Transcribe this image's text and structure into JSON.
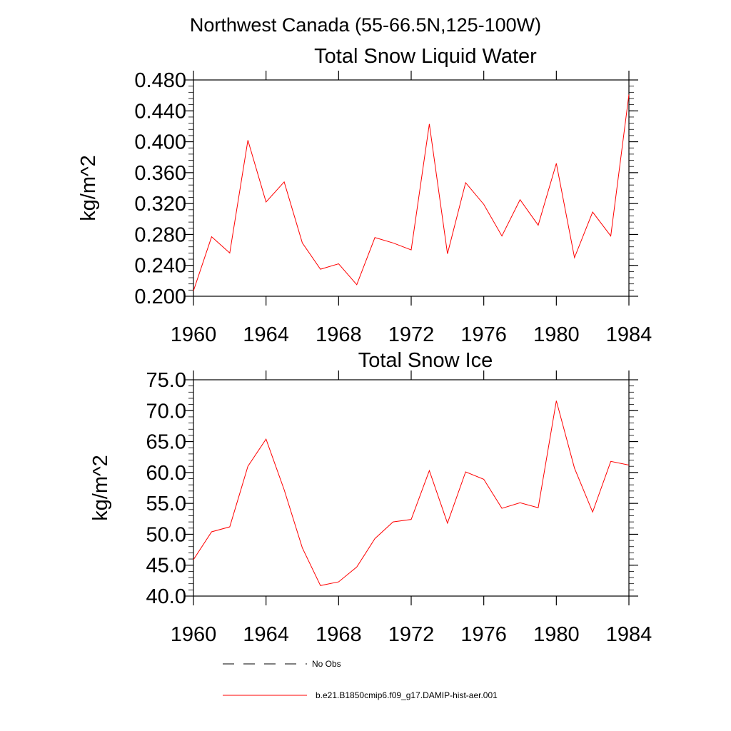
{
  "suptitle": "Northwest Canada (55-66.5N,125-100W)",
  "legend": {
    "items": [
      {
        "label": "No Obs",
        "color": "#000000",
        "dash": "dashed"
      },
      {
        "label": "b.e21.B1850cmip6.f09_g17.DAMIP-hist-aer.001",
        "color": "#ff0000",
        "dash": "solid"
      }
    ]
  },
  "chart_data": [
    {
      "type": "line",
      "title": "Total Snow Liquid Water",
      "ylabel": "kg/m^2",
      "xlabel": "",
      "xlim": [
        1960,
        1984
      ],
      "ylim": [
        0.2,
        0.48
      ],
      "xticks": [
        1960,
        1964,
        1968,
        1972,
        1976,
        1980,
        1984
      ],
      "yticks": [
        "0.200",
        "0.240",
        "0.280",
        "0.320",
        "0.360",
        "0.400",
        "0.440",
        "0.480"
      ],
      "x": [
        1960,
        1961,
        1962,
        1963,
        1964,
        1965,
        1966,
        1967,
        1968,
        1969,
        1970,
        1971,
        1972,
        1973,
        1974,
        1975,
        1976,
        1977,
        1978,
        1979,
        1980,
        1981,
        1982,
        1983,
        1984
      ],
      "series": [
        {
          "name": "b.e21.B1850cmip6.f09_g17.DAMIP-hist-aer.001",
          "color": "#ff0000",
          "values": [
            0.207,
            0.277,
            0.256,
            0.402,
            0.322,
            0.348,
            0.269,
            0.235,
            0.242,
            0.215,
            0.276,
            0.269,
            0.26,
            0.423,
            0.255,
            0.347,
            0.319,
            0.278,
            0.325,
            0.292,
            0.372,
            0.25,
            0.309,
            0.278,
            0.461
          ]
        }
      ]
    },
    {
      "type": "line",
      "title": "Total Snow Ice",
      "ylabel": "kg/m^2",
      "xlabel": "",
      "xlim": [
        1960,
        1984
      ],
      "ylim": [
        40,
        75
      ],
      "xticks": [
        1960,
        1964,
        1968,
        1972,
        1976,
        1980,
        1984
      ],
      "yticks": [
        "40.0",
        "45.0",
        "50.0",
        "55.0",
        "60.0",
        "65.0",
        "70.0",
        "75.0"
      ],
      "x": [
        1960,
        1961,
        1962,
        1963,
        1964,
        1965,
        1966,
        1967,
        1968,
        1969,
        1970,
        1971,
        1972,
        1973,
        1974,
        1975,
        1976,
        1977,
        1978,
        1979,
        1980,
        1981,
        1982,
        1983,
        1984
      ],
      "series": [
        {
          "name": "b.e21.B1850cmip6.f09_g17.DAMIP-hist-aer.001",
          "color": "#ff0000",
          "values": [
            45.9,
            50.4,
            51.2,
            61.0,
            65.4,
            57.2,
            47.8,
            41.7,
            42.3,
            44.7,
            49.3,
            52.0,
            52.4,
            60.3,
            51.8,
            60.1,
            58.9,
            54.2,
            55.1,
            54.3,
            71.6,
            60.7,
            53.6,
            61.8,
            61.2
          ]
        }
      ]
    }
  ]
}
